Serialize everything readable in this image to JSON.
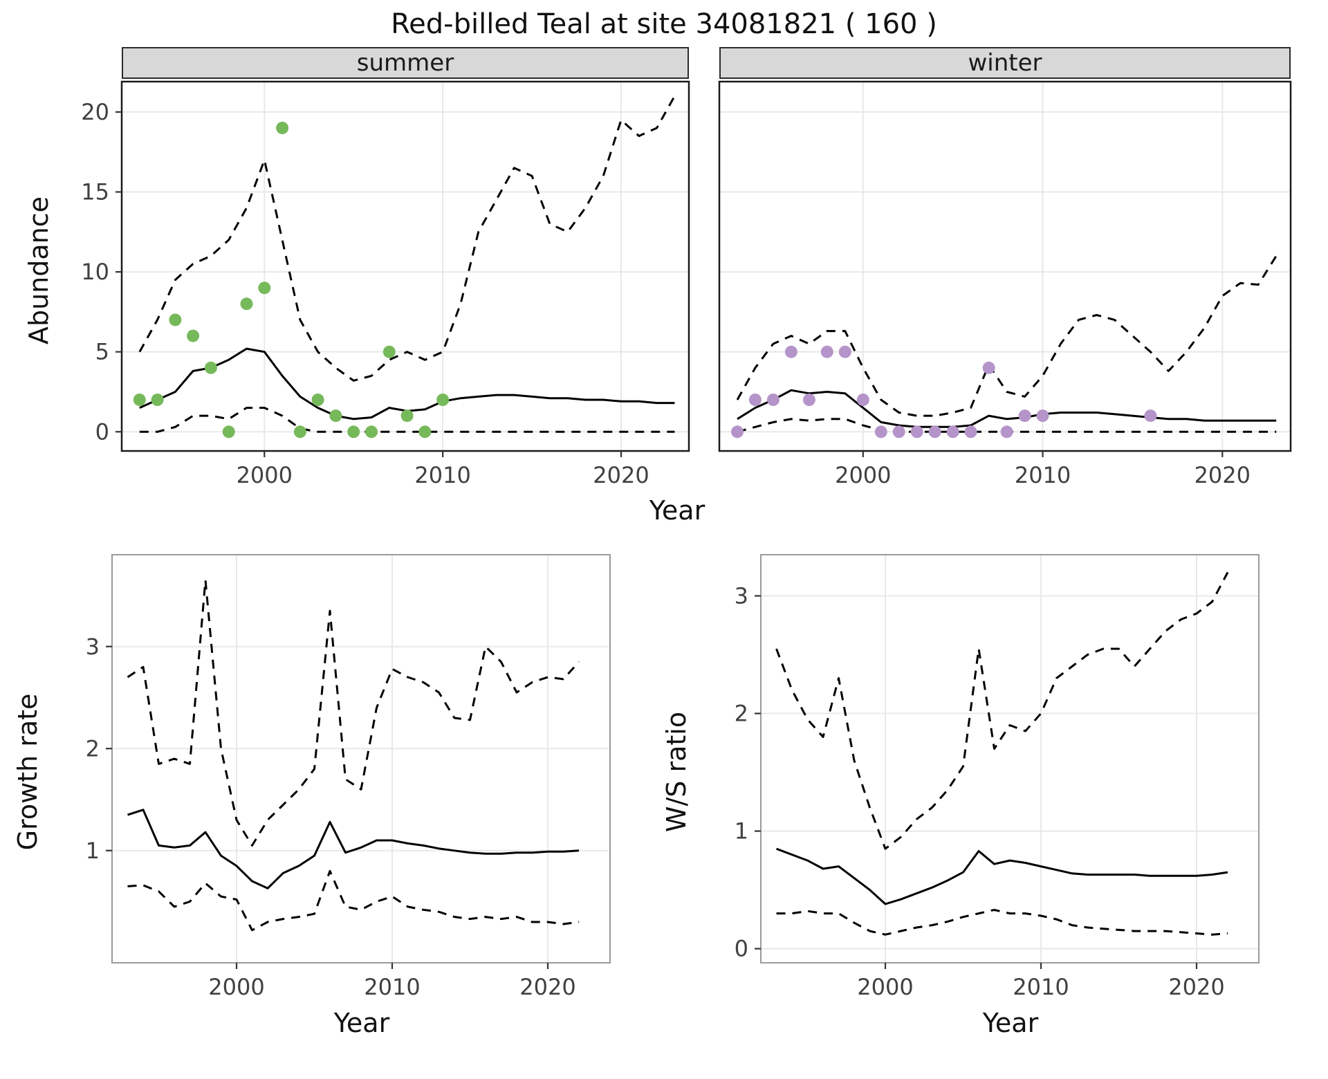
{
  "title": "Red-billed Teal at site 34081821 ( 160 )",
  "labels": {
    "abundance_ylabel": "Abundance",
    "top_xlabel": "Year"
  },
  "style": {
    "line_color": "#000000",
    "grid_color": "#e8e8e8",
    "strip_bg": "#d8d8d8",
    "tick_text_color": "#404040",
    "summer_point_color": "#76b95a",
    "winter_point_color": "#b494c9"
  },
  "chart_data": [
    {
      "id": "abundance-summer",
      "type": "line",
      "facet": "summer",
      "xlabel": "Year",
      "ylabel": "Abundance",
      "xlim": [
        1992,
        2023.8
      ],
      "ylim": [
        -1.2,
        21.9
      ],
      "xticks": [
        2000,
        2010,
        2020
      ],
      "yticks": [
        0,
        5,
        10,
        15,
        20
      ],
      "x": [
        1993,
        1994,
        1995,
        1996,
        1997,
        1998,
        1999,
        2000,
        2001,
        2002,
        2003,
        2004,
        2005,
        2006,
        2007,
        2008,
        2009,
        2010,
        2011,
        2012,
        2013,
        2014,
        2015,
        2016,
        2017,
        2018,
        2019,
        2020,
        2021,
        2022,
        2023
      ],
      "series": [
        {
          "name": "median",
          "style": "solid",
          "y": [
            1.5,
            2.0,
            2.5,
            3.8,
            4.0,
            4.5,
            5.2,
            5.0,
            3.5,
            2.2,
            1.5,
            1.0,
            0.8,
            0.9,
            1.5,
            1.3,
            1.4,
            1.9,
            2.1,
            2.2,
            2.3,
            2.3,
            2.2,
            2.1,
            2.1,
            2.0,
            2.0,
            1.9,
            1.9,
            1.8,
            1.8
          ]
        },
        {
          "name": "upper_ci",
          "style": "dashed",
          "y": [
            5.0,
            7.0,
            9.5,
            10.5,
            11.0,
            12.0,
            14.0,
            17.0,
            12.0,
            7.0,
            5.0,
            4.0,
            3.2,
            3.5,
            4.5,
            5.0,
            4.5,
            5.0,
            8.0,
            12.5,
            14.5,
            16.5,
            16.0,
            13.0,
            12.5,
            14.0,
            16.0,
            19.5,
            18.5,
            19.0,
            21.0
          ]
        },
        {
          "name": "lower_ci",
          "style": "dashed",
          "y": [
            0,
            0,
            0.3,
            1.0,
            1.0,
            0.8,
            1.5,
            1.5,
            1.0,
            0.2,
            0,
            0,
            0,
            0,
            0,
            0,
            0,
            0,
            0,
            0,
            0,
            0,
            0,
            0,
            0,
            0,
            0,
            0,
            0,
            0,
            0
          ]
        }
      ],
      "points": {
        "name": "observed_counts_summer",
        "color": "#76b95a",
        "x": [
          1993,
          1994,
          1995,
          1996,
          1997,
          1998,
          1999,
          2000,
          2001,
          2002,
          2003,
          2004,
          2005,
          2006,
          2007,
          2008,
          2009,
          2010
        ],
        "y": [
          2,
          2,
          7,
          6,
          4,
          0,
          8,
          9,
          19,
          0,
          2,
          1,
          0,
          0,
          5,
          1,
          0,
          2
        ]
      }
    },
    {
      "id": "abundance-winter",
      "type": "line",
      "facet": "winter",
      "xlabel": "Year",
      "ylabel": "Abundance",
      "xlim": [
        1992,
        2023.8
      ],
      "ylim": [
        -1.2,
        21.9
      ],
      "xticks": [
        2000,
        2010,
        2020
      ],
      "yticks": [
        0,
        5,
        10,
        15,
        20
      ],
      "x": [
        1993,
        1994,
        1995,
        1996,
        1997,
        1998,
        1999,
        2000,
        2001,
        2002,
        2003,
        2004,
        2005,
        2006,
        2007,
        2008,
        2009,
        2010,
        2011,
        2012,
        2013,
        2014,
        2015,
        2016,
        2017,
        2018,
        2019,
        2020,
        2021,
        2022,
        2023
      ],
      "series": [
        {
          "name": "median",
          "style": "solid",
          "y": [
            0.8,
            1.5,
            2.0,
            2.6,
            2.4,
            2.5,
            2.4,
            1.5,
            0.6,
            0.4,
            0.3,
            0.3,
            0.3,
            0.4,
            1.0,
            0.8,
            0.9,
            1.1,
            1.2,
            1.2,
            1.2,
            1.1,
            1.0,
            0.9,
            0.8,
            0.8,
            0.7,
            0.7,
            0.7,
            0.7,
            0.7
          ]
        },
        {
          "name": "upper_ci",
          "style": "dashed",
          "y": [
            2.0,
            4.0,
            5.5,
            6.0,
            5.5,
            6.3,
            6.3,
            4.0,
            2.0,
            1.2,
            1.0,
            1.0,
            1.2,
            1.5,
            4.2,
            2.5,
            2.2,
            3.5,
            5.5,
            7.0,
            7.3,
            7.0,
            6.0,
            5.0,
            3.8,
            5.0,
            6.5,
            8.5,
            9.3,
            9.2,
            11.0
          ]
        },
        {
          "name": "lower_ci",
          "style": "dashed",
          "y": [
            0,
            0.3,
            0.6,
            0.8,
            0.7,
            0.8,
            0.8,
            0.4,
            0.1,
            0,
            0,
            0,
            0,
            0,
            0,
            0,
            0,
            0,
            0,
            0,
            0,
            0,
            0,
            0,
            0,
            0,
            0,
            0,
            0,
            0,
            0
          ]
        }
      ],
      "points": {
        "name": "observed_counts_winter",
        "color": "#b494c9",
        "x": [
          1993,
          1994,
          1995,
          1996,
          1997,
          1998,
          1999,
          2000,
          2001,
          2002,
          2003,
          2004,
          2005,
          2006,
          2007,
          2008,
          2009,
          2010,
          2016
        ],
        "y": [
          0,
          2,
          2,
          5,
          2,
          5,
          5,
          2,
          0,
          0,
          0,
          0,
          0,
          0,
          4,
          0,
          1,
          1,
          1
        ]
      }
    },
    {
      "id": "growth-rate",
      "type": "line",
      "facet": "",
      "xlabel": "Year",
      "ylabel": "Growth rate",
      "xlim": [
        1992,
        2024
      ],
      "ylim": [
        -0.1,
        3.9
      ],
      "xticks": [
        2000,
        2010,
        2020
      ],
      "yticks": [
        1,
        2,
        3
      ],
      "x": [
        1993,
        1994,
        1995,
        1996,
        1997,
        1998,
        1999,
        2000,
        2001,
        2002,
        2003,
        2004,
        2005,
        2006,
        2007,
        2008,
        2009,
        2010,
        2011,
        2012,
        2013,
        2014,
        2015,
        2016,
        2017,
        2018,
        2019,
        2020,
        2021,
        2022
      ],
      "series": [
        {
          "name": "median",
          "style": "solid",
          "y": [
            1.35,
            1.4,
            1.05,
            1.03,
            1.05,
            1.18,
            0.95,
            0.85,
            0.7,
            0.63,
            0.78,
            0.85,
            0.95,
            1.28,
            0.98,
            1.03,
            1.1,
            1.1,
            1.07,
            1.05,
            1.02,
            1.0,
            0.98,
            0.97,
            0.97,
            0.98,
            0.98,
            0.99,
            0.99,
            1.0
          ]
        },
        {
          "name": "upper_ci",
          "style": "dashed",
          "y": [
            2.7,
            2.8,
            1.85,
            1.9,
            1.85,
            3.65,
            2.0,
            1.3,
            1.05,
            1.3,
            1.45,
            1.6,
            1.8,
            3.35,
            1.7,
            1.6,
            2.4,
            2.78,
            2.7,
            2.65,
            2.55,
            2.3,
            2.28,
            3.0,
            2.85,
            2.55,
            2.65,
            2.7,
            2.68,
            2.85
          ]
        },
        {
          "name": "lower_ci",
          "style": "dashed",
          "y": [
            0.65,
            0.66,
            0.6,
            0.45,
            0.5,
            0.68,
            0.55,
            0.52,
            0.22,
            0.3,
            0.33,
            0.35,
            0.38,
            0.8,
            0.45,
            0.42,
            0.5,
            0.55,
            0.45,
            0.42,
            0.4,
            0.35,
            0.33,
            0.35,
            0.33,
            0.35,
            0.3,
            0.3,
            0.28,
            0.3
          ]
        }
      ]
    },
    {
      "id": "ws-ratio",
      "type": "line",
      "facet": "",
      "xlabel": "Year",
      "ylabel": "W/S ratio",
      "xlim": [
        1992,
        2024
      ],
      "ylim": [
        -0.12,
        3.35
      ],
      "xticks": [
        2000,
        2010,
        2020
      ],
      "yticks": [
        0,
        1,
        2,
        3
      ],
      "x": [
        1993,
        1994,
        1995,
        1996,
        1997,
        1998,
        1999,
        2000,
        2001,
        2002,
        2003,
        2004,
        2005,
        2006,
        2007,
        2008,
        2009,
        2010,
        2011,
        2012,
        2013,
        2014,
        2015,
        2016,
        2017,
        2018,
        2019,
        2020,
        2021,
        2022
      ],
      "series": [
        {
          "name": "median",
          "style": "solid",
          "y": [
            0.85,
            0.8,
            0.75,
            0.68,
            0.7,
            0.6,
            0.5,
            0.38,
            0.42,
            0.47,
            0.52,
            0.58,
            0.65,
            0.83,
            0.72,
            0.75,
            0.73,
            0.7,
            0.67,
            0.64,
            0.63,
            0.63,
            0.63,
            0.63,
            0.62,
            0.62,
            0.62,
            0.62,
            0.63,
            0.65
          ]
        },
        {
          "name": "upper_ci",
          "style": "dashed",
          "y": [
            2.55,
            2.2,
            1.95,
            1.8,
            2.3,
            1.6,
            1.2,
            0.85,
            0.95,
            1.1,
            1.2,
            1.35,
            1.55,
            2.55,
            1.7,
            1.9,
            1.85,
            2.0,
            2.3,
            2.4,
            2.5,
            2.55,
            2.55,
            2.4,
            2.55,
            2.7,
            2.8,
            2.85,
            2.95,
            3.2
          ]
        },
        {
          "name": "lower_ci",
          "style": "dashed",
          "y": [
            0.3,
            0.3,
            0.32,
            0.3,
            0.3,
            0.22,
            0.15,
            0.12,
            0.15,
            0.18,
            0.2,
            0.23,
            0.27,
            0.3,
            0.33,
            0.3,
            0.3,
            0.28,
            0.25,
            0.2,
            0.18,
            0.17,
            0.16,
            0.15,
            0.15,
            0.15,
            0.14,
            0.13,
            0.12,
            0.13
          ]
        }
      ]
    }
  ]
}
